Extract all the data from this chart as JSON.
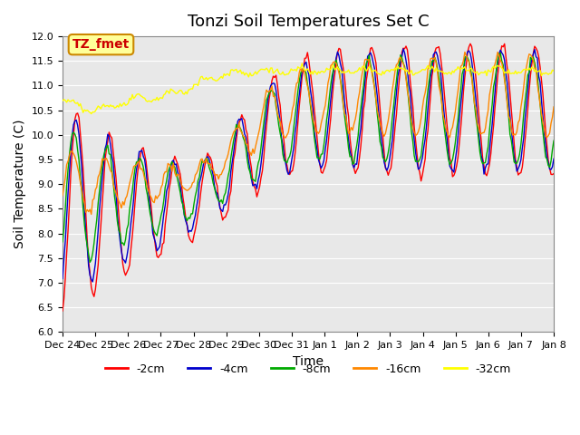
{
  "title": "Tonzi Soil Temperatures Set C",
  "xlabel": "Time",
  "ylabel": "Soil Temperature (C)",
  "ylim": [
    6.0,
    12.0
  ],
  "yticks": [
    6.0,
    6.5,
    7.0,
    7.5,
    8.0,
    8.5,
    9.0,
    9.5,
    10.0,
    10.5,
    11.0,
    11.5,
    12.0
  ],
  "xtick_labels": [
    "Dec 24",
    "Dec 25",
    "Dec 26",
    "Dec 27",
    "Dec 28",
    "Dec 29",
    "Dec 30",
    "Dec 31",
    "Jan 1",
    "Jan 2",
    "Jan 3",
    "Jan 4",
    "Jan 5",
    "Jan 6",
    "Jan 7",
    "Jan 8"
  ],
  "colors": {
    "-2cm": "#ff0000",
    "-4cm": "#0000cc",
    "-8cm": "#00aa00",
    "-16cm": "#ff8800",
    "-32cm": "#ffff00"
  },
  "legend_label": "TZ_fmet",
  "legend_bg": "#ffff99",
  "legend_border": "#cc8800",
  "legend_text_color": "#cc0000",
  "bg_color": "#e8e8e8",
  "title_fontsize": 13,
  "axis_label_fontsize": 10
}
